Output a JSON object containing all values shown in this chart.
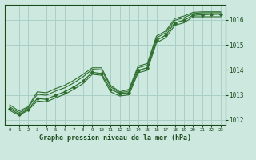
{
  "xlabel": "Graphe pression niveau de la mer (hPa)",
  "background_color": "#cce8df",
  "grid_color": "#aacfc6",
  "line_color": "#2d6e2d",
  "marker_color": "#2d6e2d",
  "text_color": "#1a4a1a",
  "xlim": [
    -0.5,
    23.5
  ],
  "ylim": [
    1011.8,
    1016.6
  ],
  "yticks": [
    1012,
    1013,
    1014,
    1015,
    1016
  ],
  "xticks": [
    0,
    1,
    2,
    3,
    4,
    5,
    6,
    7,
    8,
    9,
    10,
    11,
    12,
    13,
    14,
    15,
    16,
    17,
    18,
    19,
    20,
    21,
    22,
    23
  ],
  "series": {
    "line1": [
      1012.45,
      1012.22,
      1012.42,
      1012.85,
      1012.82,
      1012.98,
      1013.12,
      1013.32,
      1013.55,
      1013.9,
      1013.85,
      1013.22,
      1013.05,
      1013.08,
      1013.98,
      1014.08,
      1015.18,
      1015.38,
      1015.88,
      1015.98,
      1016.18,
      1016.2,
      1016.22,
      1016.22
    ],
    "line2": [
      1012.52,
      1012.28,
      1012.48,
      1013.02,
      1012.98,
      1013.15,
      1013.28,
      1013.48,
      1013.72,
      1014.02,
      1014.0,
      1013.32,
      1013.08,
      1013.15,
      1014.08,
      1014.18,
      1015.28,
      1015.48,
      1015.98,
      1016.08,
      1016.25,
      1016.28,
      1016.28,
      1016.28
    ],
    "line3": [
      1012.6,
      1012.35,
      1012.52,
      1013.12,
      1013.08,
      1013.25,
      1013.38,
      1013.58,
      1013.82,
      1014.08,
      1014.08,
      1013.38,
      1013.12,
      1013.22,
      1014.15,
      1014.25,
      1015.35,
      1015.55,
      1016.05,
      1016.15,
      1016.3,
      1016.32,
      1016.32,
      1016.32
    ],
    "line4": [
      1012.38,
      1012.18,
      1012.38,
      1012.75,
      1012.72,
      1012.88,
      1013.02,
      1013.22,
      1013.45,
      1013.82,
      1013.78,
      1013.12,
      1012.95,
      1013.0,
      1013.88,
      1013.98,
      1015.08,
      1015.28,
      1015.78,
      1015.88,
      1016.12,
      1016.12,
      1016.12,
      1016.12
    ]
  }
}
